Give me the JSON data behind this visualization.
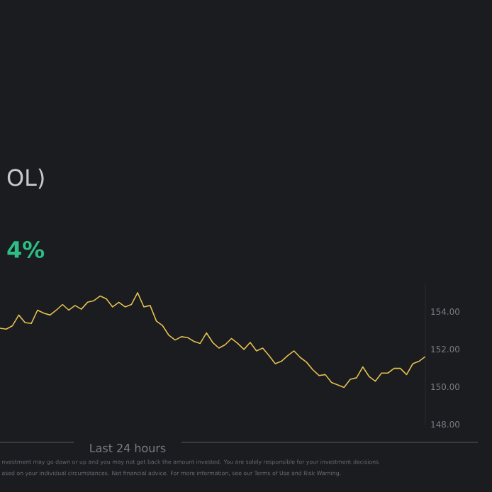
{
  "chart_data": {
    "type": "line",
    "title": "OL)",
    "subtitle": "4%",
    "xlabel": "Last 24 hours",
    "annotations": [
      "nvestment may go down or up and you may not get back the amount invested. You are solely responsible for your investment decisions",
      "ased on your individual circumstances. Not financial advice. For more information, see our Terms of Use and Risk Warning."
    ],
    "categories": [
      null,
      null,
      null,
      null,
      null,
      null,
      null,
      null,
      null,
      null,
      null,
      null,
      null,
      null,
      null,
      null,
      null,
      null,
      null,
      null,
      null,
      null,
      null,
      null,
      null,
      null,
      null,
      null,
      null,
      null,
      null,
      null,
      null,
      null,
      null,
      null,
      null,
      null,
      null,
      null,
      null,
      null,
      null,
      null,
      null,
      null,
      null,
      null,
      null,
      null,
      null,
      null,
      null,
      null,
      null,
      null,
      null,
      null,
      null,
      null,
      null,
      null,
      null,
      null,
      null,
      null,
      null,
      null,
      null
    ],
    "series": [
      {
        "color": "#e5bf4f",
        "values": [
          153.12,
          153.07,
          153.25,
          153.82,
          153.42,
          153.37,
          154.08,
          153.92,
          153.82,
          154.08,
          154.38,
          154.08,
          154.33,
          154.13,
          154.5,
          154.58,
          154.83,
          154.68,
          154.25,
          154.5,
          154.25,
          154.38,
          155.01,
          154.25,
          154.33,
          153.5,
          153.25,
          152.74,
          152.49,
          152.67,
          152.62,
          152.42,
          152.31,
          152.87,
          152.36,
          152.06,
          152.24,
          152.57,
          152.31,
          151.99,
          152.36,
          151.91,
          152.06,
          151.66,
          151.23,
          151.36,
          151.66,
          151.91,
          151.56,
          151.31,
          150.91,
          150.6,
          150.65,
          150.23,
          150.1,
          149.97,
          150.4,
          150.48,
          151.06,
          150.55,
          150.3,
          150.73,
          150.73,
          150.98,
          150.98,
          150.65,
          151.23,
          151.36,
          151.61
        ]
      }
    ],
    "ylim": [
      148,
      155.5
    ],
    "yticks": [
      {
        "value": 148,
        "label": "148.00"
      },
      {
        "value": 150,
        "label": "150.00"
      },
      {
        "value": 152,
        "label": "152.00"
      },
      {
        "value": 154,
        "label": "154.00"
      }
    ],
    "grid": false,
    "marker": "none",
    "line_style": "solid"
  }
}
